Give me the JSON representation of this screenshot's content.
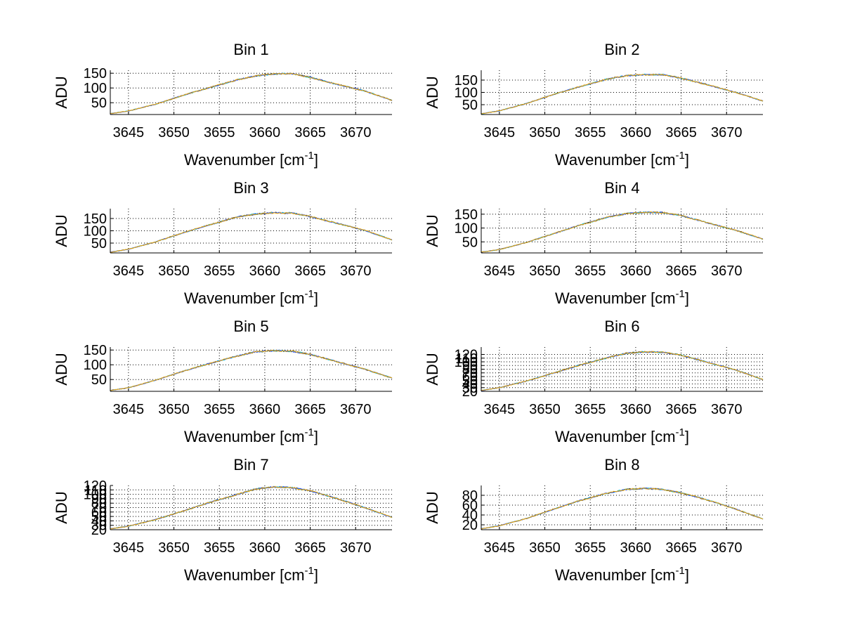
{
  "chart_data": [
    {
      "type": "line",
      "title": "Bin 1",
      "xlabel": "Wavenumber [cm",
      "xlabel_sup": "-1",
      "xlabel_end": "]",
      "ylabel": "ADU",
      "xlim": [
        3643,
        3674
      ],
      "ylim": [
        10,
        160
      ],
      "xticks": [
        3645,
        3650,
        3655,
        3660,
        3665,
        3670
      ],
      "yticks": [
        50,
        100,
        150
      ],
      "grid": true,
      "x": [
        3643,
        3645,
        3648,
        3651,
        3654,
        3657,
        3659,
        3661,
        3663,
        3665,
        3668,
        3671,
        3674
      ],
      "values": [
        13,
        22,
        45,
        75,
        102,
        128,
        141,
        148,
        148,
        136,
        112,
        90,
        58
      ]
    },
    {
      "type": "line",
      "title": "Bin 2",
      "xlabel": "Wavenumber [cm",
      "xlabel_sup": "-1",
      "xlabel_end": "]",
      "ylabel": "ADU",
      "xlim": [
        3643,
        3674
      ],
      "ylim": [
        10,
        190
      ],
      "xticks": [
        3645,
        3650,
        3655,
        3660,
        3665,
        3670
      ],
      "yticks": [
        50,
        100,
        150
      ],
      "grid": true,
      "x": [
        3643,
        3645,
        3648,
        3651,
        3654,
        3657,
        3659,
        3661,
        3663,
        3665,
        3668,
        3671,
        3674
      ],
      "values": [
        13,
        25,
        55,
        92,
        125,
        155,
        168,
        172,
        172,
        158,
        130,
        100,
        65
      ]
    },
    {
      "type": "line",
      "title": "Bin 3",
      "xlabel": "Wavenumber [cm",
      "xlabel_sup": "-1",
      "xlabel_end": "]",
      "ylabel": "ADU",
      "xlim": [
        3643,
        3674
      ],
      "ylim": [
        10,
        190
      ],
      "xticks": [
        3645,
        3650,
        3655,
        3660,
        3665,
        3670
      ],
      "yticks": [
        50,
        100,
        150
      ],
      "grid": true,
      "x": [
        3643,
        3645,
        3648,
        3651,
        3654,
        3657,
        3659,
        3661,
        3663,
        3665,
        3668,
        3671,
        3674
      ],
      "values": [
        13,
        25,
        55,
        92,
        125,
        157,
        168,
        173,
        172,
        158,
        130,
        102,
        63
      ]
    },
    {
      "type": "line",
      "title": "Bin 4",
      "xlabel": "Wavenumber [cm",
      "xlabel_sup": "-1",
      "xlabel_end": "]",
      "ylabel": "ADU",
      "xlim": [
        3643,
        3674
      ],
      "ylim": [
        10,
        170
      ],
      "xticks": [
        3645,
        3650,
        3655,
        3660,
        3665,
        3670
      ],
      "yticks": [
        50,
        100,
        150
      ],
      "grid": true,
      "x": [
        3643,
        3645,
        3648,
        3651,
        3654,
        3657,
        3659,
        3661,
        3663,
        3665,
        3668,
        3671,
        3674
      ],
      "values": [
        13,
        22,
        48,
        80,
        112,
        140,
        152,
        157,
        156,
        145,
        118,
        92,
        60
      ]
    },
    {
      "type": "line",
      "title": "Bin 5",
      "xlabel": "Wavenumber [cm",
      "xlabel_sup": "-1",
      "xlabel_end": "]",
      "ylabel": "ADU",
      "xlim": [
        3643,
        3674
      ],
      "ylim": [
        10,
        160
      ],
      "xticks": [
        3645,
        3650,
        3655,
        3660,
        3665,
        3670
      ],
      "yticks": [
        50,
        100,
        150
      ],
      "grid": true,
      "x": [
        3643,
        3645,
        3648,
        3651,
        3654,
        3657,
        3659,
        3661,
        3663,
        3665,
        3668,
        3671,
        3674
      ],
      "values": [
        13,
        22,
        48,
        78,
        105,
        130,
        144,
        148,
        146,
        135,
        110,
        85,
        55
      ]
    },
    {
      "type": "line",
      "title": "Bin 6",
      "xlabel": "Wavenumber [cm",
      "xlabel_sup": "-1",
      "xlabel_end": "]",
      "ylabel": "ADU",
      "xlim": [
        3643,
        3674
      ],
      "ylim": [
        20,
        140
      ],
      "xticks": [
        3645,
        3650,
        3655,
        3660,
        3665,
        3670
      ],
      "yticks": [
        20,
        30,
        40,
        50,
        60,
        70,
        80,
        90,
        100,
        110,
        120
      ],
      "ytick_labels": [
        "20",
        "30",
        "40",
        "50",
        "60",
        "70",
        "80",
        "90",
        "100",
        "110",
        "120"
      ],
      "grid": true,
      "x": [
        3643,
        3645,
        3648,
        3651,
        3654,
        3657,
        3659,
        3661,
        3663,
        3665,
        3668,
        3671,
        3674
      ],
      "values": [
        22,
        30,
        48,
        70,
        92,
        112,
        123,
        127,
        126,
        118,
        98,
        78,
        52
      ]
    },
    {
      "type": "line",
      "title": "Bin 7",
      "xlabel": "Wavenumber [cm",
      "xlabel_sup": "-1",
      "xlabel_end": "]",
      "ylabel": "ADU",
      "xlim": [
        3643,
        3674
      ],
      "ylim": [
        20,
        120
      ],
      "xticks": [
        3645,
        3650,
        3655,
        3660,
        3665,
        3670
      ],
      "yticks": [
        20,
        30,
        40,
        50,
        60,
        70,
        80,
        90,
        100,
        110,
        120
      ],
      "ytick_labels": [
        "20",
        "30",
        "40",
        "50",
        "60",
        "70",
        "80",
        "90",
        "100",
        "110",
        "120"
      ],
      "grid": true,
      "x": [
        3643,
        3645,
        3648,
        3651,
        3654,
        3657,
        3659,
        3661,
        3663,
        3665,
        3668,
        3671,
        3674
      ],
      "values": [
        22,
        28,
        43,
        62,
        82,
        100,
        112,
        117,
        115,
        108,
        90,
        70,
        48
      ]
    },
    {
      "type": "line",
      "title": "Bin 8",
      "xlabel": "Wavenumber [cm",
      "xlabel_sup": "-1",
      "xlabel_end": "]",
      "ylabel": "ADU",
      "xlim": [
        3643,
        3674
      ],
      "ylim": [
        10,
        100
      ],
      "xticks": [
        3645,
        3650,
        3655,
        3660,
        3665,
        3670
      ],
      "yticks": [
        20,
        40,
        60,
        80
      ],
      "grid": true,
      "x": [
        3643,
        3645,
        3648,
        3651,
        3654,
        3657,
        3659,
        3661,
        3663,
        3665,
        3668,
        3671,
        3674
      ],
      "values": [
        12,
        18,
        33,
        52,
        70,
        85,
        92,
        94,
        92,
        85,
        70,
        52,
        32
      ]
    }
  ],
  "colors": {
    "series": [
      "#f0a800",
      "#3355ff",
      "#00bcd4",
      "#202020"
    ],
    "grid": "#000000",
    "axes": "#000000"
  }
}
